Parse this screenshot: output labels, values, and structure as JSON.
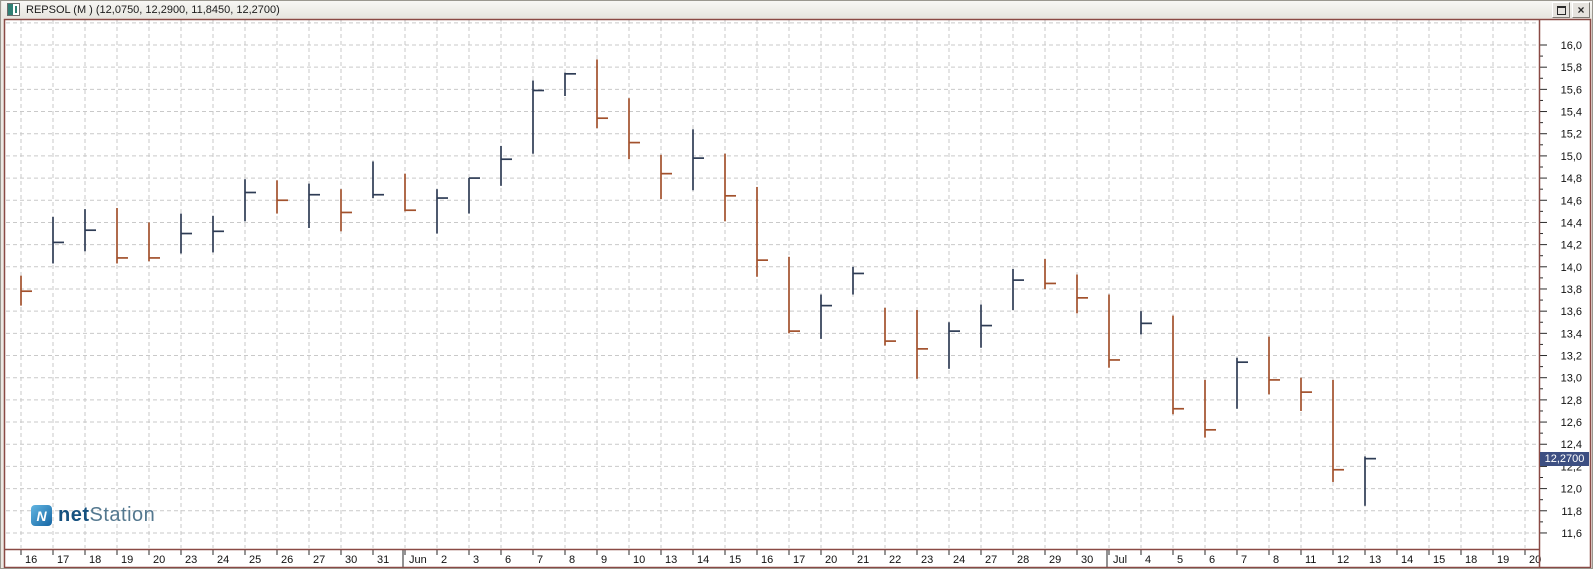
{
  "window": {
    "title": "REPSOL (M ) (12,0750, 12,2900, 11,8450, 12,2700)",
    "controls": {
      "restore_label": "restore-window",
      "close_label": "close-window"
    }
  },
  "logo": {
    "net": "net",
    "station": "Station",
    "icon_letter": "N"
  },
  "price_tag": {
    "value": "12,2700",
    "background": "#3d4f82"
  },
  "chart_data": {
    "type": "bar",
    "subtype": "hlc-bars",
    "instrument": "REPSOL",
    "period_code": "M",
    "title": "REPSOL (M ) (12,0750, 12,2900, 11,8450, 12,2700)",
    "last_bar_ohlc": {
      "open": 12.075,
      "high": 12.29,
      "low": 11.845,
      "close": 12.27
    },
    "grid": "dashed",
    "legend_position": "none",
    "colors": {
      "up": "#2e3c55",
      "down": "#a2512c",
      "grid": "#c9c9c9",
      "frame": "#8a4a45"
    },
    "y_axis": {
      "side": "right",
      "min": 11.6,
      "max": 16.0,
      "step": 0.2,
      "minor_step": 0.1,
      "labels": [
        "16,0",
        "15,8",
        "15,6",
        "15,4",
        "15,2",
        "15,0",
        "14,8",
        "14,6",
        "14,4",
        "14,2",
        "14,0",
        "13,8",
        "13,6",
        "13,4",
        "13,2",
        "13,0",
        "12,8",
        "12,6",
        "12,4",
        "12,2",
        "12,0",
        "11,8",
        "11,6"
      ],
      "highlighted_value_label": "12,2700"
    },
    "x_labels": [
      "16",
      "17",
      "18",
      "19",
      "20",
      "23",
      "24",
      "25",
      "26",
      "27",
      "30",
      "31",
      "Jun",
      "2",
      "3",
      "6",
      "7",
      "8",
      "9",
      "10",
      "13",
      "14",
      "15",
      "16",
      "17",
      "20",
      "21",
      "22",
      "23",
      "24",
      "27",
      "28",
      "29",
      "30",
      "Jul",
      "4",
      "5",
      "6",
      "7",
      "8",
      "11",
      "12",
      "13",
      "14",
      "15",
      "18",
      "19",
      "20"
    ],
    "month_break_indices": [
      12,
      34
    ],
    "bars": [
      {
        "x_index": 0,
        "high": 13.92,
        "low": 13.65,
        "close": 13.78,
        "dir": "down"
      },
      {
        "x_index": 1,
        "high": 14.45,
        "low": 14.03,
        "close": 14.22,
        "dir": "up"
      },
      {
        "x_index": 2,
        "high": 14.52,
        "low": 14.14,
        "close": 14.33,
        "dir": "up"
      },
      {
        "x_index": 3,
        "high": 14.53,
        "low": 14.03,
        "close": 14.08,
        "dir": "down"
      },
      {
        "x_index": 4,
        "high": 14.4,
        "low": 14.05,
        "close": 14.08,
        "dir": "down"
      },
      {
        "x_index": 5,
        "high": 14.48,
        "low": 14.12,
        "close": 14.3,
        "dir": "up"
      },
      {
        "x_index": 6,
        "high": 14.46,
        "low": 14.13,
        "close": 14.32,
        "dir": "up"
      },
      {
        "x_index": 7,
        "high": 14.79,
        "low": 14.41,
        "close": 14.67,
        "dir": "up"
      },
      {
        "x_index": 8,
        "high": 14.78,
        "low": 14.48,
        "close": 14.6,
        "dir": "down"
      },
      {
        "x_index": 9,
        "high": 14.75,
        "low": 14.35,
        "close": 14.65,
        "dir": "up"
      },
      {
        "x_index": 10,
        "high": 14.7,
        "low": 14.32,
        "close": 14.49,
        "dir": "down"
      },
      {
        "x_index": 11,
        "high": 14.95,
        "low": 14.62,
        "close": 14.65,
        "dir": "up"
      },
      {
        "x_index": 12,
        "high": 14.84,
        "low": 14.5,
        "close": 14.51,
        "dir": "down"
      },
      {
        "x_index": 13,
        "high": 14.7,
        "low": 14.3,
        "close": 14.62,
        "dir": "up"
      },
      {
        "x_index": 14,
        "high": 14.8,
        "low": 14.48,
        "close": 14.8,
        "dir": "up"
      },
      {
        "x_index": 15,
        "high": 15.09,
        "low": 14.73,
        "close": 14.97,
        "dir": "up"
      },
      {
        "x_index": 16,
        "high": 15.68,
        "low": 15.02,
        "close": 15.59,
        "dir": "up"
      },
      {
        "x_index": 17,
        "high": 15.75,
        "low": 15.54,
        "close": 15.74,
        "dir": "up"
      },
      {
        "x_index": 18,
        "high": 15.87,
        "low": 15.25,
        "close": 15.34,
        "dir": "down"
      },
      {
        "x_index": 19,
        "high": 15.52,
        "low": 14.97,
        "close": 15.12,
        "dir": "down"
      },
      {
        "x_index": 20,
        "high": 15.01,
        "low": 14.61,
        "close": 14.84,
        "dir": "down"
      },
      {
        "x_index": 21,
        "high": 15.24,
        "low": 14.69,
        "close": 14.98,
        "dir": "up"
      },
      {
        "x_index": 22,
        "high": 15.02,
        "low": 14.41,
        "close": 14.64,
        "dir": "down"
      },
      {
        "x_index": 23,
        "high": 14.72,
        "low": 13.91,
        "close": 14.06,
        "dir": "down"
      },
      {
        "x_index": 24,
        "high": 14.09,
        "low": 13.4,
        "close": 13.42,
        "dir": "down"
      },
      {
        "x_index": 25,
        "high": 13.75,
        "low": 13.35,
        "close": 13.65,
        "dir": "up"
      },
      {
        "x_index": 26,
        "high": 14.0,
        "low": 13.75,
        "close": 13.94,
        "dir": "up"
      },
      {
        "x_index": 27,
        "high": 13.63,
        "low": 13.29,
        "close": 13.33,
        "dir": "down"
      },
      {
        "x_index": 28,
        "high": 13.61,
        "low": 12.99,
        "close": 13.26,
        "dir": "down"
      },
      {
        "x_index": 29,
        "high": 13.5,
        "low": 13.08,
        "close": 13.42,
        "dir": "up"
      },
      {
        "x_index": 30,
        "high": 13.66,
        "low": 13.27,
        "close": 13.47,
        "dir": "up"
      },
      {
        "x_index": 31,
        "high": 13.98,
        "low": 13.61,
        "close": 13.88,
        "dir": "up"
      },
      {
        "x_index": 32,
        "high": 14.07,
        "low": 13.8,
        "close": 13.85,
        "dir": "down"
      },
      {
        "x_index": 33,
        "high": 13.93,
        "low": 13.58,
        "close": 13.72,
        "dir": "down"
      },
      {
        "x_index": 34,
        "high": 13.75,
        "low": 13.09,
        "close": 13.16,
        "dir": "down"
      },
      {
        "x_index": 35,
        "high": 13.6,
        "low": 13.39,
        "close": 13.49,
        "dir": "up"
      },
      {
        "x_index": 36,
        "high": 13.56,
        "low": 12.67,
        "close": 12.72,
        "dir": "down"
      },
      {
        "x_index": 37,
        "high": 12.98,
        "low": 12.46,
        "close": 12.53,
        "dir": "down"
      },
      {
        "x_index": 38,
        "high": 13.18,
        "low": 12.72,
        "close": 13.14,
        "dir": "up"
      },
      {
        "x_index": 39,
        "high": 13.37,
        "low": 12.85,
        "close": 12.98,
        "dir": "down"
      },
      {
        "x_index": 40,
        "high": 13.0,
        "low": 12.7,
        "close": 12.87,
        "dir": "down"
      },
      {
        "x_index": 41,
        "high": 12.98,
        "low": 12.06,
        "close": 12.17,
        "dir": "down"
      },
      {
        "x_index": 42,
        "high": 12.29,
        "low": 11.845,
        "close": 12.27,
        "dir": "up"
      }
    ]
  }
}
